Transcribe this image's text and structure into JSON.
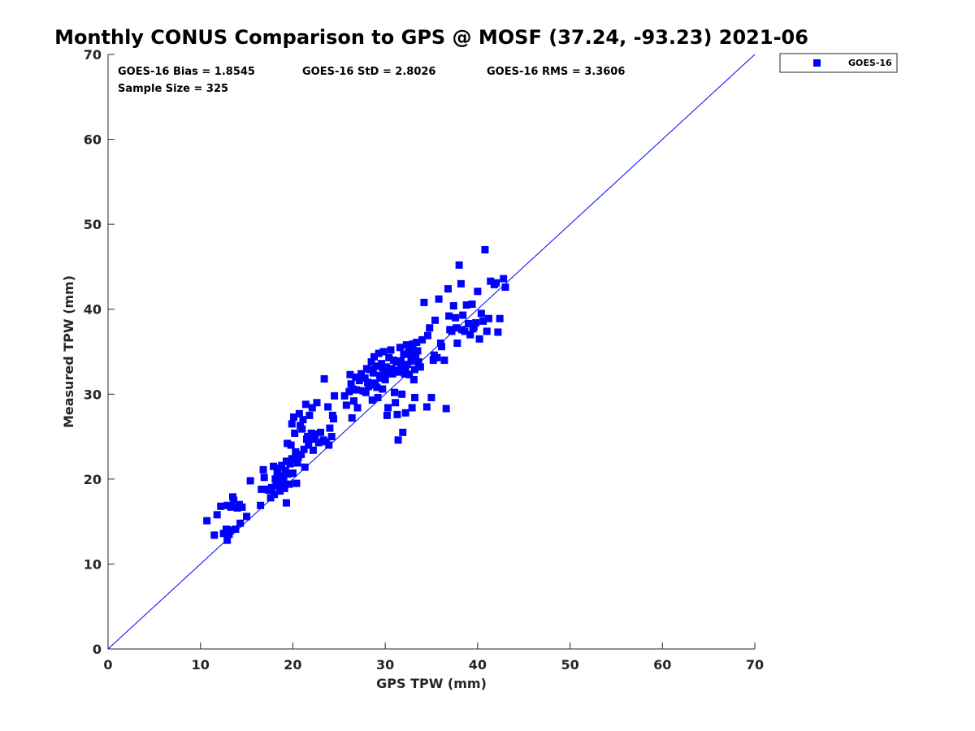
{
  "chart_data": {
    "type": "scatter",
    "title": "Monthly CONUS Comparison to GPS @ MOSF (37.24, -93.23) 2021-06",
    "xlabel": "GPS TPW (mm)",
    "ylabel": "Measured TPW (mm)",
    "xlim": [
      0,
      70
    ],
    "ylim": [
      0,
      70
    ],
    "xticks": [
      0,
      10,
      20,
      30,
      40,
      50,
      60,
      70
    ],
    "yticks": [
      0,
      10,
      20,
      30,
      40,
      50,
      60,
      70
    ],
    "grid": false,
    "legend_position": "outside-top-right",
    "stats": {
      "bias": "GOES-16 Bias = 1.8545",
      "std": "GOES-16 StD = 2.8026",
      "rms": "GOES-16 RMS = 3.3606",
      "sample_size": "Sample Size = 325"
    },
    "reference_line": {
      "name": "1:1",
      "from": [
        0,
        0
      ],
      "to": [
        70,
        70
      ],
      "color": "#0000ff"
    },
    "series": [
      {
        "name": "GOES-16",
        "color": "#0000ff",
        "marker": "square",
        "points": [
          [
            10.7,
            15.1
          ],
          [
            11.5,
            13.4
          ],
          [
            11.8,
            15.8
          ],
          [
            12.2,
            16.8
          ],
          [
            12.5,
            13.6
          ],
          [
            12.8,
            14.1
          ],
          [
            12.9,
            16.9
          ],
          [
            13.1,
            13.5
          ],
          [
            13.3,
            16.7
          ],
          [
            13.5,
            17.9
          ],
          [
            13.6,
            17.5
          ],
          [
            13.8,
            14.1
          ],
          [
            14.0,
            16.6
          ],
          [
            14.2,
            17.0
          ],
          [
            14.3,
            14.8
          ],
          [
            14.5,
            16.7
          ],
          [
            15.0,
            15.6
          ],
          [
            15.4,
            19.8
          ],
          [
            12.9,
            12.8
          ],
          [
            13.2,
            14.0
          ],
          [
            16.5,
            16.9
          ],
          [
            16.6,
            18.8
          ],
          [
            16.8,
            21.1
          ],
          [
            16.9,
            20.2
          ],
          [
            17.1,
            18.8
          ],
          [
            17.4,
            18.7
          ],
          [
            17.6,
            17.8
          ],
          [
            17.7,
            19.0
          ],
          [
            17.9,
            21.5
          ],
          [
            18.0,
            18.2
          ],
          [
            18.1,
            20.0
          ],
          [
            18.2,
            19.2
          ],
          [
            18.3,
            20.8
          ],
          [
            18.4,
            21.3
          ],
          [
            18.5,
            19.6
          ],
          [
            18.6,
            18.6
          ],
          [
            18.7,
            20.4
          ],
          [
            18.8,
            21.6
          ],
          [
            18.9,
            19.3
          ],
          [
            19.0,
            20.1
          ],
          [
            19.1,
            18.9
          ],
          [
            19.2,
            21.0
          ],
          [
            19.3,
            17.2
          ],
          [
            19.3,
            22.1
          ],
          [
            19.4,
            24.2
          ],
          [
            19.5,
            20.6
          ],
          [
            19.6,
            19.4
          ],
          [
            19.7,
            21.8
          ],
          [
            19.8,
            24.0
          ],
          [
            19.9,
            26.5
          ],
          [
            19.9,
            22.4
          ],
          [
            20.0,
            20.7
          ],
          [
            20.1,
            27.3
          ],
          [
            20.2,
            25.4
          ],
          [
            20.3,
            23.2
          ],
          [
            20.4,
            19.5
          ],
          [
            20.5,
            21.9
          ],
          [
            20.6,
            22.6
          ],
          [
            20.7,
            27.7
          ],
          [
            20.8,
            26.3
          ],
          [
            20.9,
            22.9
          ],
          [
            21.0,
            25.9
          ],
          [
            21.1,
            27.0
          ],
          [
            21.2,
            23.5
          ],
          [
            21.3,
            21.4
          ],
          [
            21.4,
            28.8
          ],
          [
            21.5,
            24.7
          ],
          [
            21.6,
            25.0
          ],
          [
            21.7,
            24.0
          ],
          [
            21.8,
            27.5
          ],
          [
            21.9,
            24.8
          ],
          [
            22.0,
            25.4
          ],
          [
            22.1,
            28.4
          ],
          [
            22.2,
            23.4
          ],
          [
            22.3,
            25.3
          ],
          [
            22.4,
            24.7
          ],
          [
            22.6,
            29.0
          ],
          [
            22.8,
            24.3
          ],
          [
            23.0,
            25.5
          ],
          [
            23.3,
            24.6
          ],
          [
            23.4,
            31.8
          ],
          [
            23.6,
            24.4
          ],
          [
            23.8,
            28.5
          ],
          [
            23.9,
            24.0
          ],
          [
            24.0,
            26.0
          ],
          [
            24.2,
            25.0
          ],
          [
            24.3,
            27.5
          ],
          [
            24.4,
            27.1
          ],
          [
            24.5,
            29.8
          ],
          [
            25.6,
            29.8
          ],
          [
            25.8,
            28.7
          ],
          [
            26.1,
            30.3
          ],
          [
            26.2,
            32.3
          ],
          [
            26.3,
            31.2
          ],
          [
            26.4,
            27.2
          ],
          [
            26.5,
            30.6
          ],
          [
            26.6,
            29.2
          ],
          [
            26.8,
            32.0
          ],
          [
            26.9,
            30.5
          ],
          [
            27.0,
            28.4
          ],
          [
            27.2,
            31.6
          ],
          [
            27.4,
            32.4
          ],
          [
            27.6,
            30.4
          ],
          [
            27.8,
            31.9
          ],
          [
            27.9,
            30.2
          ],
          [
            28.0,
            33.0
          ],
          [
            28.1,
            31.4
          ],
          [
            28.2,
            30.9
          ],
          [
            28.3,
            32.9
          ],
          [
            28.4,
            31.1
          ],
          [
            28.5,
            33.8
          ],
          [
            28.6,
            29.3
          ],
          [
            28.7,
            32.5
          ],
          [
            28.8,
            34.4
          ],
          [
            28.9,
            31.3
          ],
          [
            29.0,
            33.3
          ],
          [
            29.1,
            30.8
          ],
          [
            29.2,
            29.6
          ],
          [
            29.3,
            34.8
          ],
          [
            29.4,
            32.2
          ],
          [
            29.5,
            31.9
          ],
          [
            29.6,
            33.6
          ],
          [
            29.7,
            30.6
          ],
          [
            29.8,
            35.0
          ],
          [
            29.9,
            32.4
          ],
          [
            30.0,
            31.7
          ],
          [
            30.1,
            33.2
          ],
          [
            30.2,
            27.5
          ],
          [
            30.3,
            28.4
          ],
          [
            30.4,
            34.3
          ],
          [
            30.5,
            32.7
          ],
          [
            30.6,
            35.2
          ],
          [
            30.7,
            33.0
          ],
          [
            30.8,
            32.4
          ],
          [
            30.9,
            34.0
          ],
          [
            31.0,
            30.2
          ],
          [
            31.1,
            29.0
          ],
          [
            31.2,
            33.8
          ],
          [
            31.3,
            27.6
          ],
          [
            31.4,
            24.6
          ],
          [
            31.5,
            32.6
          ],
          [
            31.6,
            35.5
          ],
          [
            31.7,
            33.4
          ],
          [
            31.8,
            30.0
          ],
          [
            31.9,
            25.5
          ],
          [
            32.0,
            34.7
          ],
          [
            32.1,
            32.4
          ],
          [
            32.2,
            27.8
          ],
          [
            32.3,
            35.8
          ],
          [
            32.4,
            33.5
          ],
          [
            32.5,
            34.9
          ],
          [
            32.6,
            32.3
          ],
          [
            32.7,
            35.3
          ],
          [
            32.8,
            33.9
          ],
          [
            32.9,
            28.4
          ],
          [
            33.0,
            35.9
          ],
          [
            33.1,
            31.7
          ],
          [
            33.2,
            29.6
          ],
          [
            33.3,
            34.6
          ],
          [
            33.4,
            36.1
          ],
          [
            33.5,
            35.1
          ],
          [
            33.6,
            33.8
          ],
          [
            34.0,
            36.4
          ],
          [
            34.2,
            40.8
          ],
          [
            34.5,
            28.5
          ],
          [
            34.8,
            37.8
          ],
          [
            35.0,
            29.6
          ],
          [
            35.2,
            34.0
          ],
          [
            35.4,
            38.7
          ],
          [
            35.6,
            34.3
          ],
          [
            35.8,
            41.2
          ],
          [
            36.0,
            36.0
          ],
          [
            36.4,
            34.0
          ],
          [
            36.6,
            28.3
          ],
          [
            36.8,
            42.4
          ],
          [
            37.0,
            37.6
          ],
          [
            37.2,
            37.4
          ],
          [
            37.4,
            40.4
          ],
          [
            37.6,
            39.0
          ],
          [
            37.8,
            36.0
          ],
          [
            38.0,
            45.2
          ],
          [
            38.2,
            43.0
          ],
          [
            38.4,
            39.3
          ],
          [
            38.6,
            37.4
          ],
          [
            38.8,
            40.5
          ],
          [
            39.0,
            38.3
          ],
          [
            39.2,
            37.0
          ],
          [
            39.4,
            40.6
          ],
          [
            39.6,
            37.9
          ],
          [
            39.8,
            38.4
          ],
          [
            40.0,
            42.1
          ],
          [
            40.2,
            36.5
          ],
          [
            40.4,
            39.5
          ],
          [
            40.6,
            38.6
          ],
          [
            40.8,
            47.0
          ],
          [
            41.0,
            37.4
          ],
          [
            41.2,
            38.9
          ],
          [
            41.4,
            43.3
          ],
          [
            42.0,
            43.1
          ],
          [
            42.2,
            37.3
          ],
          [
            42.4,
            38.9
          ],
          [
            42.8,
            43.6
          ],
          [
            43.0,
            42.6
          ],
          [
            41.8,
            42.9
          ],
          [
            39.5,
            37.7
          ],
          [
            38.3,
            37.6
          ],
          [
            37.7,
            37.8
          ],
          [
            36.9,
            39.2
          ],
          [
            36.1,
            35.6
          ],
          [
            35.3,
            34.6
          ],
          [
            34.6,
            36.9
          ],
          [
            33.8,
            33.2
          ],
          [
            33.2,
            32.9
          ],
          [
            32.7,
            34.7
          ],
          [
            32.2,
            33.0
          ],
          [
            31.7,
            33.9
          ],
          [
            31.2,
            32.8
          ],
          [
            30.7,
            32.4
          ],
          [
            30.2,
            32.7
          ],
          [
            29.7,
            33.1
          ]
        ]
      }
    ]
  }
}
